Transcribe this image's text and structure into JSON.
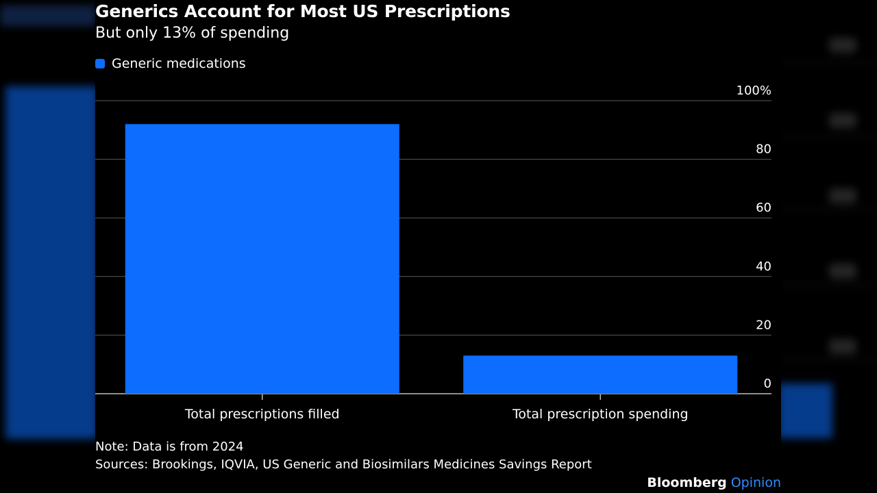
{
  "colors": {
    "background": "#000000",
    "bar": "#0c6dff",
    "grid": "#5a5a5a",
    "text": "#ffffff",
    "brand_accent": "#2f8cff"
  },
  "footer": {
    "note": "Note: Data is from 2024",
    "sources": "Sources: Brookings, IQVIA, US Generic and Biosimilars Medicines Savings Report",
    "brand_main": "Bloomberg",
    "brand_sub": "Opinion"
  },
  "chart_data": {
    "type": "bar",
    "title": "Generics Account for Most US Prescriptions",
    "subtitle": "But only 13% of spending",
    "categories": [
      "Total prescriptions filled",
      "Total prescription spending"
    ],
    "series": [
      {
        "name": "Generic medications",
        "values": [
          92,
          13
        ]
      }
    ],
    "ylim": [
      0,
      100
    ],
    "yticks": [
      {
        "value": 0,
        "label": "0"
      },
      {
        "value": 20,
        "label": "20"
      },
      {
        "value": 40,
        "label": "40"
      },
      {
        "value": 60,
        "label": "60"
      },
      {
        "value": 80,
        "label": "80"
      },
      {
        "value": 100,
        "label": "100%"
      }
    ],
    "grid": true,
    "legend_position": "top-left",
    "yaxis_side": "right"
  }
}
